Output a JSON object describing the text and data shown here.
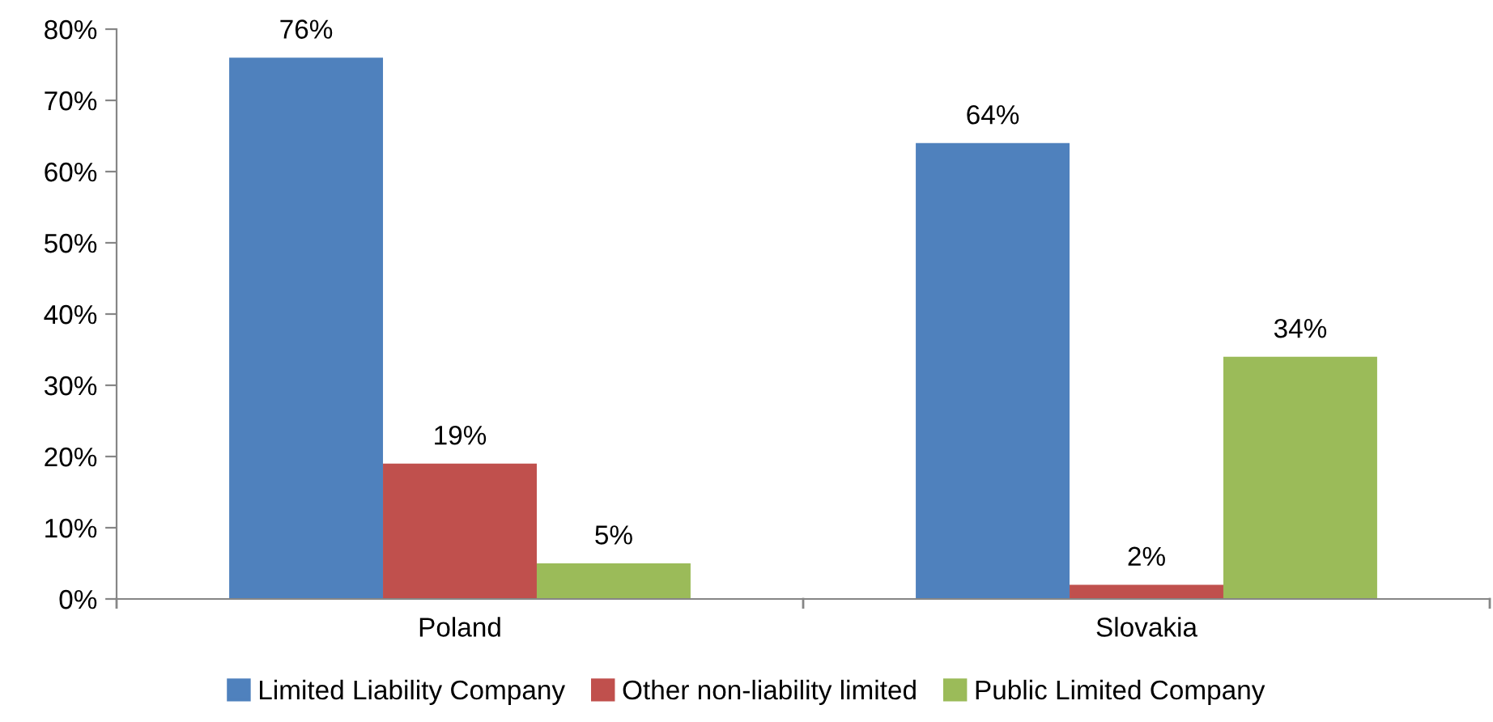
{
  "chart_data": {
    "type": "bar",
    "categories": [
      "Poland",
      "Slovakia"
    ],
    "series": [
      {
        "name": "Limited Liability Company",
        "color": "#4f81bd",
        "values": [
          76,
          64
        ],
        "value_labels": [
          "76%",
          "64%"
        ]
      },
      {
        "name": "Other non-liability limited",
        "color": "#c0504d",
        "values": [
          19,
          2
        ],
        "value_labels": [
          "19%",
          "2%"
        ]
      },
      {
        "name": "Public Limited Company",
        "color": "#9bbb59",
        "values": [
          5,
          34
        ],
        "value_labels": [
          "5%",
          "34%"
        ]
      }
    ],
    "ylim": [
      0,
      80
    ],
    "yticks": [
      {
        "value": 0,
        "label": "0%"
      },
      {
        "value": 10,
        "label": "10%"
      },
      {
        "value": 20,
        "label": "20%"
      },
      {
        "value": 30,
        "label": "30%"
      },
      {
        "value": 40,
        "label": "40%"
      },
      {
        "value": 50,
        "label": "50%"
      },
      {
        "value": 60,
        "label": "60%"
      },
      {
        "value": 70,
        "label": "70%"
      },
      {
        "value": 80,
        "label": "80%"
      }
    ],
    "grid": false,
    "legend": "bottom"
  }
}
